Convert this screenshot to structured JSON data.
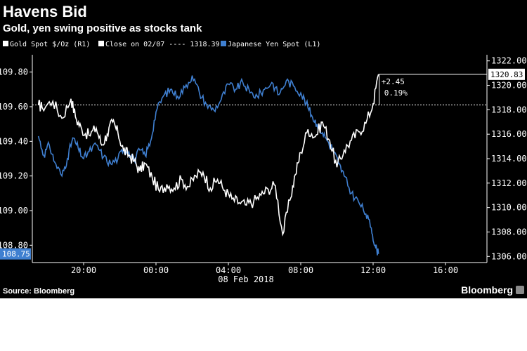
{
  "title": "Havens Bid",
  "subtitle": "Gold, yen swing positive as stocks tank",
  "source": "Source: Bloomberg",
  "brand": "Bloomberg",
  "colors": {
    "background": "#000000",
    "gold": "#ffffff",
    "yen": "#3f7fd0",
    "close": "#ffffff",
    "text": "#ffffff"
  },
  "legend": {
    "gold": "Gold Spot $/Oz  (R1)",
    "close": "Close on 02/07 ---- 1318.39",
    "yen": "Japanese Yen Spot  (L1)"
  },
  "annotation": {
    "change": "+2.45",
    "pct": "0.19%"
  },
  "chart_data": {
    "type": "line",
    "xlabel": "08 Feb 2018",
    "x_ticks": [
      "20:00",
      "00:00",
      "04:00",
      "08:00",
      "12:00",
      "16:00"
    ],
    "left_axis": {
      "ylim": [
        108.7,
        109.9
      ],
      "ticks": [
        "109.80",
        "109.60",
        "109.40",
        "109.20",
        "109.00",
        "108.80"
      ],
      "last_value_label": "108.75"
    },
    "right_axis": {
      "ylim": [
        1305.5,
        1322.5
      ],
      "ticks": [
        "1322.00",
        "1320.00",
        "1318.00",
        "1316.00",
        "1314.00",
        "1312.00",
        "1310.00",
        "1308.00",
        "1306.00"
      ],
      "last_value_label": "1320.83"
    },
    "reference_line": {
      "name": "Close on 02/07",
      "value": 1318.39,
      "axis": "right"
    },
    "series": [
      {
        "name": "Gold Spot $/Oz",
        "axis": "right",
        "x_hours": [
          -6.5,
          -6.3,
          -5.7,
          -5.2,
          -4.7,
          -4.4,
          -4.1,
          -3.7,
          -3.3,
          -3.0,
          -2.7,
          -2.4,
          -2.1,
          -1.8,
          -1.5,
          -1.2,
          -0.9,
          -0.6,
          -0.2,
          0.2,
          0.6,
          1.0,
          1.4,
          1.8,
          2.2,
          2.6,
          3.0,
          3.4,
          3.8,
          4.2,
          4.6,
          5.0,
          5.4,
          5.8,
          6.2,
          6.6,
          7.0,
          7.4,
          7.7,
          8.0,
          8.4,
          8.8,
          9.2,
          9.6,
          10.0,
          10.4,
          10.8,
          11.2,
          11.6,
          12.0,
          12.3
        ],
        "values": [
          1318.4,
          1318.2,
          1318.7,
          1317.3,
          1318.9,
          1317.2,
          1316.4,
          1315.9,
          1316.5,
          1315.1,
          1316.0,
          1317.0,
          1316.1,
          1314.7,
          1314.3,
          1313.8,
          1313.0,
          1313.6,
          1312.4,
          1311.3,
          1311.9,
          1311.6,
          1312.3,
          1311.7,
          1312.6,
          1312.9,
          1311.6,
          1312.3,
          1311.4,
          1310.7,
          1310.4,
          1310.2,
          1310.5,
          1311.0,
          1311.5,
          1311.8,
          1307.8,
          1310.6,
          1312.7,
          1314.5,
          1316.4,
          1315.8,
          1317.0,
          1315.5,
          1313.3,
          1314.7,
          1315.5,
          1316.2,
          1316.9,
          1318.5,
          1320.9
        ]
      },
      {
        "name": "Japanese Yen Spot",
        "axis": "left",
        "x_hours": [
          -6.5,
          -6.2,
          -5.9,
          -5.6,
          -5.2,
          -4.9,
          -4.6,
          -4.3,
          -4.0,
          -3.7,
          -3.3,
          -2.9,
          -2.5,
          -2.1,
          -1.8,
          -1.5,
          -1.2,
          -0.9,
          -0.6,
          -0.3,
          0.0,
          0.4,
          0.8,
          1.2,
          1.6,
          2.0,
          2.4,
          2.8,
          3.2,
          3.6,
          4.0,
          4.4,
          4.8,
          5.2,
          5.6,
          6.0,
          6.4,
          6.8,
          7.2,
          7.6,
          8.0,
          8.3,
          8.6,
          8.9,
          9.2,
          9.5,
          9.8,
          10.1,
          10.4,
          10.8,
          11.2,
          11.6,
          11.9,
          12.1,
          12.3
        ],
        "values": [
          109.43,
          109.32,
          109.38,
          109.28,
          109.2,
          109.3,
          109.42,
          109.36,
          109.3,
          109.34,
          109.38,
          109.31,
          109.27,
          109.3,
          109.36,
          109.34,
          109.29,
          109.35,
          109.32,
          109.4,
          109.57,
          109.66,
          109.7,
          109.66,
          109.71,
          109.78,
          109.68,
          109.61,
          109.58,
          109.64,
          109.73,
          109.7,
          109.74,
          109.68,
          109.66,
          109.7,
          109.74,
          109.67,
          109.75,
          109.72,
          109.68,
          109.62,
          109.55,
          109.5,
          109.45,
          109.4,
          109.35,
          109.27,
          109.2,
          109.1,
          109.05,
          108.98,
          108.9,
          108.8,
          108.75
        ]
      }
    ]
  }
}
